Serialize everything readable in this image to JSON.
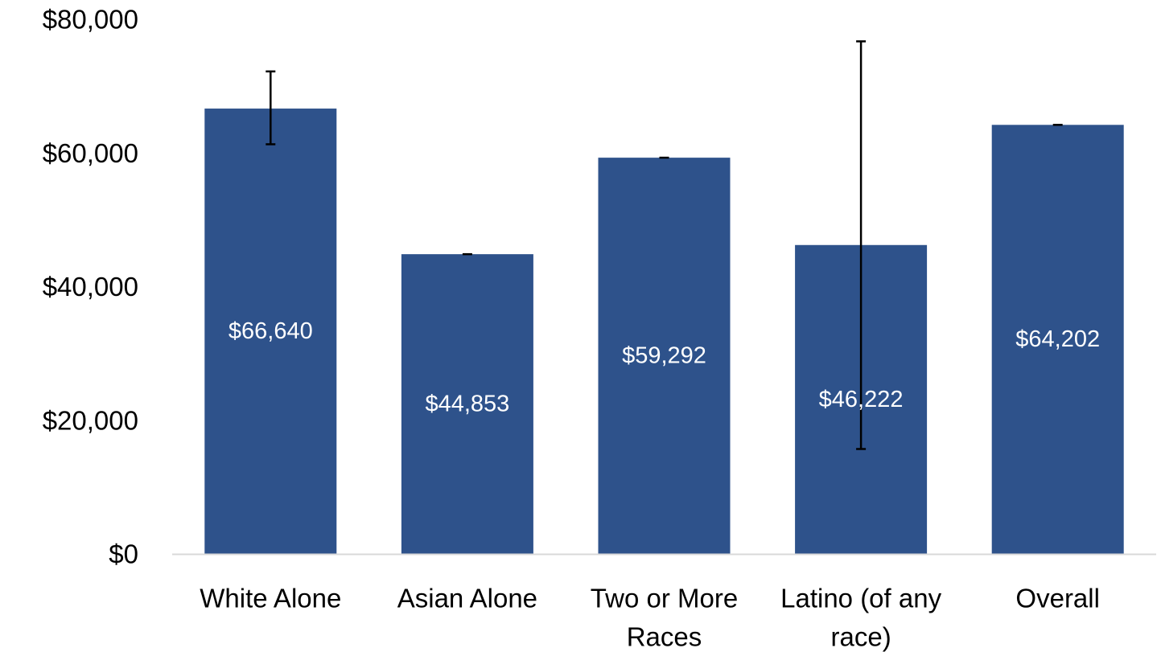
{
  "chart_data": {
    "type": "bar",
    "categories": [
      [
        "White Alone"
      ],
      [
        "Asian Alone"
      ],
      [
        "Two or More",
        "Races"
      ],
      [
        "Latino (of any",
        "race)"
      ],
      [
        "Overall"
      ]
    ],
    "values": [
      66640,
      44853,
      59292,
      46222,
      64202
    ],
    "data_labels": [
      "$66,640",
      "$44,853",
      "$59,292",
      "$46,222",
      "$64,202"
    ],
    "error_bars": [
      [
        61300,
        72200
      ],
      [
        44853,
        44853
      ],
      [
        59292,
        59292
      ],
      [
        15700,
        76700
      ],
      [
        64202,
        64202
      ]
    ],
    "ylim": [
      0,
      80000
    ],
    "yticks": [
      0,
      20000,
      40000,
      60000,
      80000
    ],
    "ytick_labels": [
      "$0",
      "$20,000",
      "$40,000",
      "$60,000",
      "$80,000"
    ],
    "title": "",
    "xlabel": "",
    "ylabel": "",
    "grid": false,
    "bar_color": "#2e528b",
    "label_color": "#ffffff",
    "error_bar_color": "#000000",
    "axis_color": "#d9d9d9"
  }
}
